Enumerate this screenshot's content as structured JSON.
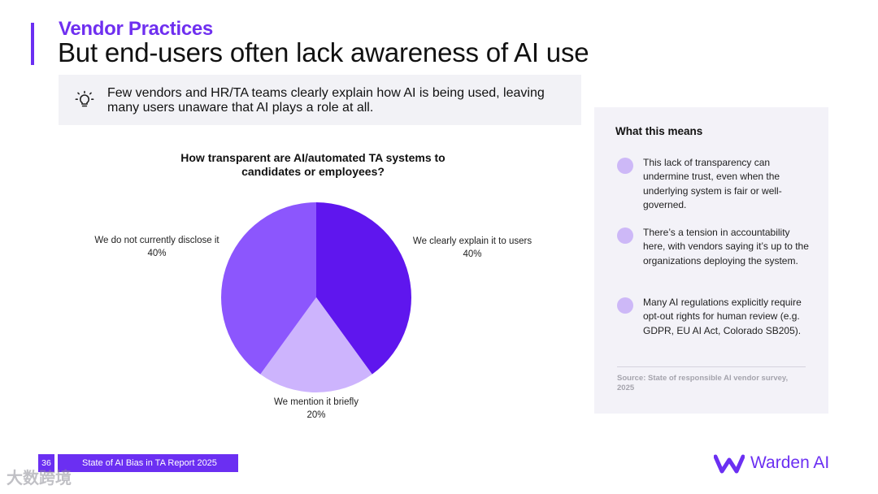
{
  "header": {
    "kicker": "Vendor Practices",
    "title": "But end-users often lack awareness of AI use"
  },
  "insight": {
    "icon": "lightbulb-icon",
    "text": "Few vendors and HR/TA teams clearly explain how AI is being used, leaving many users unaware that AI plays a role at all."
  },
  "chart_data": {
    "type": "pie",
    "title": "How transparent are AI/automated TA systems to candidates or employees?",
    "slices": [
      {
        "label": "We clearly explain it to users",
        "value": 40,
        "display": "40%",
        "color": "#5f16ee"
      },
      {
        "label": "We mention it briefly",
        "value": 20,
        "display": "20%",
        "color": "#cdb4fd"
      },
      {
        "label": "We do not currently disclose it",
        "value": 40,
        "display": "40%",
        "color": "#8c56fd"
      }
    ]
  },
  "side_panel": {
    "heading": "What this means",
    "points": [
      "This lack of transparency can undermine trust, even when the underlying system is fair or well-governed.",
      "There’s a tension in accountability here, with vendors saying it’s up to the organizations deploying the system.",
      "Many AI regulations explicitly require opt-out rights for human review (e.g. GDPR, EU AI Act, Colorado SB205)."
    ],
    "source": "Source: State of responsible AI vendor survey, 2025"
  },
  "footer": {
    "page_number": "36",
    "report_title": "State of AI Bias in TA Report 2025",
    "watermark": "大数跨境"
  },
  "brand": {
    "name": "Warden AI",
    "accent": "#6b2ff2"
  }
}
